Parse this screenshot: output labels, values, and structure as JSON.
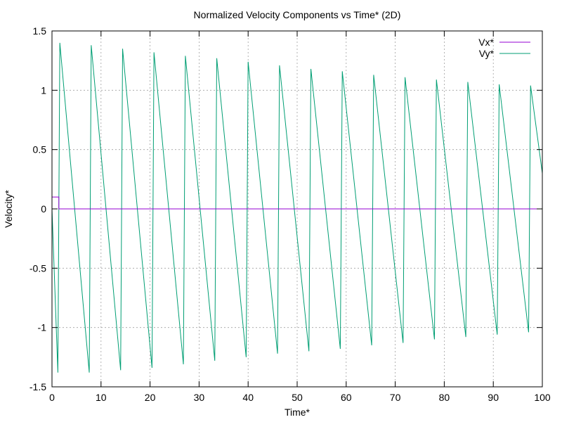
{
  "chart_data": {
    "type": "line",
    "title": "Normalized Velocity Components vs Time* (2D)",
    "xlabel": "Time*",
    "ylabel": "Velocity*",
    "xlim": [
      0,
      100
    ],
    "ylim": [
      -1.5,
      1.5
    ],
    "xticks": [
      "0",
      "10",
      "20",
      "30",
      "40",
      "50",
      "60",
      "70",
      "80",
      "90",
      "100"
    ],
    "yticks": [
      "-1.5",
      "-1",
      "-0.5",
      "0",
      "0.5",
      "1",
      "1.5"
    ],
    "grid": true,
    "legend_position": "top-right",
    "series": [
      {
        "name": "Vx*",
        "color": "#9400d3",
        "points": [
          [
            0,
            0.1
          ],
          [
            1.4,
            0.1
          ],
          [
            1.4,
            0.0
          ],
          [
            100,
            0.0
          ]
        ]
      },
      {
        "name": "Vy*",
        "color": "#009e73",
        "sampling": "oscillation repeated every 3.2 time units; each cycle drops from the peak to the trough then jumps back to the peak",
        "start": [
          0,
          0.0
        ],
        "first_drop_end": [
          1.2,
          -1.38
        ],
        "end": [
          100,
          0.3
        ],
        "period": 3.2,
        "peaks": [
          [
            1.6,
            1.4
          ],
          [
            8.0,
            1.38
          ],
          [
            14.4,
            1.35
          ],
          [
            20.8,
            1.32
          ],
          [
            27.2,
            1.29
          ],
          [
            33.6,
            1.27
          ],
          [
            40.0,
            1.24
          ],
          [
            46.4,
            1.21
          ],
          [
            52.8,
            1.18
          ],
          [
            59.2,
            1.16
          ],
          [
            65.6,
            1.13
          ],
          [
            72.0,
            1.11
          ],
          [
            78.4,
            1.09
          ],
          [
            84.8,
            1.07
          ],
          [
            91.2,
            1.05
          ],
          [
            97.6,
            1.04
          ]
        ],
        "troughs": [
          [
            1.2,
            -1.38
          ],
          [
            7.6,
            -1.38
          ],
          [
            14.0,
            -1.36
          ],
          [
            20.4,
            -1.34
          ],
          [
            26.8,
            -1.31
          ],
          [
            33.2,
            -1.28
          ],
          [
            39.6,
            -1.25
          ],
          [
            46.0,
            -1.22
          ],
          [
            52.4,
            -1.2
          ],
          [
            58.8,
            -1.18
          ],
          [
            65.2,
            -1.15
          ],
          [
            71.6,
            -1.13
          ],
          [
            78.0,
            -1.1
          ],
          [
            84.4,
            -1.08
          ],
          [
            90.8,
            -1.06
          ],
          [
            97.2,
            -1.04
          ]
        ]
      }
    ]
  }
}
